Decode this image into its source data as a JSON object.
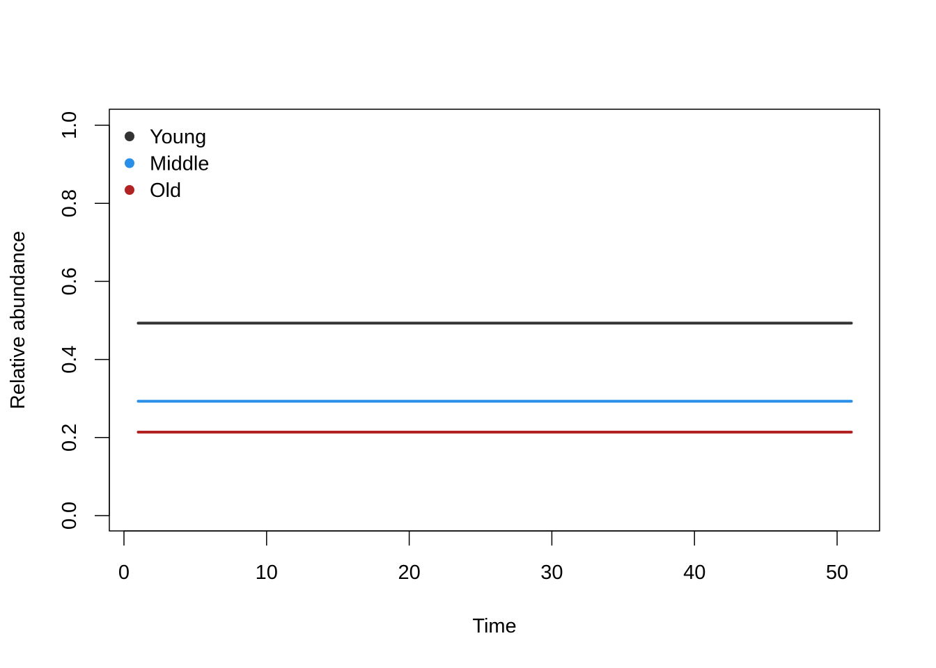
{
  "chart_data": {
    "type": "line",
    "title": "",
    "xlabel": "Time",
    "ylabel": "Relative abundance",
    "xlim": [
      0,
      52
    ],
    "ylim": [
      0.0,
      1.0
    ],
    "xticks": [
      0,
      10,
      20,
      30,
      40,
      50
    ],
    "xtick_labels": [
      "0",
      "10",
      "20",
      "30",
      "40",
      "50"
    ],
    "yticks": [
      0.0,
      0.2,
      0.4,
      0.6,
      0.8,
      1.0
    ],
    "ytick_labels": [
      "0.0",
      "0.2",
      "0.4",
      "0.6",
      "0.8",
      "1.0"
    ],
    "grid": false,
    "legend_position": "top-left",
    "series": [
      {
        "name": "Young",
        "color": "#333333",
        "x": [
          1,
          51
        ],
        "y": [
          0.493,
          0.493
        ]
      },
      {
        "name": "Middle",
        "color": "#2a8fe8",
        "x": [
          1,
          51
        ],
        "y": [
          0.293,
          0.293
        ]
      },
      {
        "name": "Old",
        "color": "#b22222",
        "x": [
          1,
          51
        ],
        "y": [
          0.214,
          0.214
        ]
      }
    ]
  }
}
